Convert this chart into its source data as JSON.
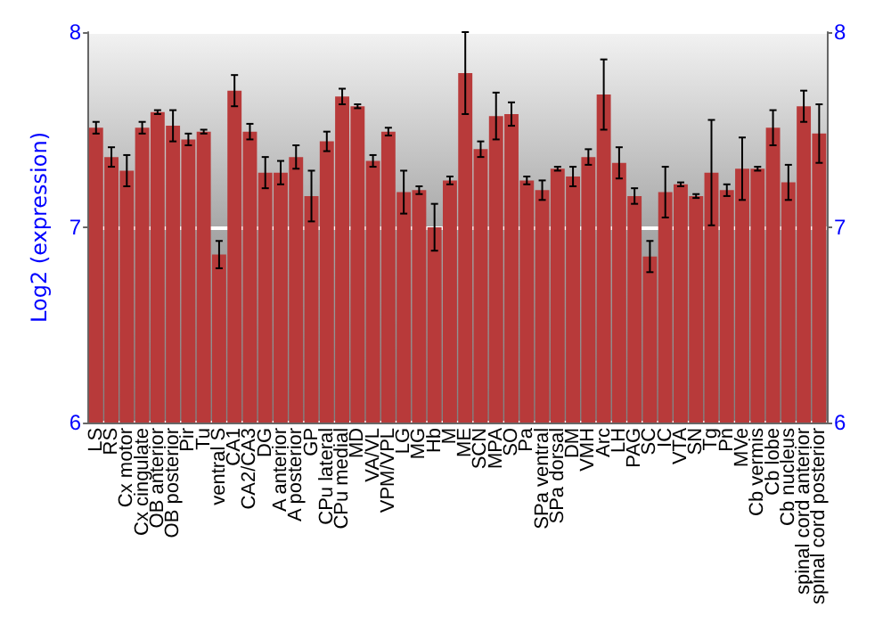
{
  "chart_data": {
    "type": "bar",
    "ylabel": "Log2 (expression)",
    "categories": [
      "LS",
      "RS",
      "Cx motor",
      "Cx cingulate",
      "OB anterior",
      "OB posterior",
      "Pir",
      "Tu",
      "ventral S",
      "CA1",
      "CA2/CA3",
      "DG",
      "A anterior",
      "A posterior",
      "GP",
      "CPu lateral",
      "CPu medial",
      "MD",
      "VA/VL",
      "VPM/VPL",
      "LG",
      "MG",
      "Hb",
      "M",
      "ME",
      "SCN",
      "MPA",
      "SO",
      "Pa",
      "SPa ventral",
      "SPa dorsal",
      "DM",
      "VMH",
      "Arc",
      "LH",
      "PAG",
      "SC",
      "IC",
      "VTA",
      "SN",
      "Tg",
      "Pn",
      "MVe",
      "Cb vermis",
      "Cb lobe",
      "Cb nucleus",
      "spinal cord anterior",
      "spinal cord posterior"
    ],
    "values": [
      7.51,
      7.36,
      7.29,
      7.51,
      7.59,
      7.52,
      7.45,
      7.49,
      6.86,
      7.7,
      7.49,
      7.28,
      7.28,
      7.36,
      7.16,
      7.44,
      7.67,
      7.62,
      7.34,
      7.49,
      7.18,
      7.19,
      7.0,
      7.24,
      7.79,
      7.4,
      7.57,
      7.58,
      7.24,
      7.19,
      7.3,
      7.26,
      7.36,
      7.68,
      7.33,
      7.16,
      6.85,
      7.18,
      7.22,
      7.16,
      7.28,
      7.19,
      7.3,
      7.3,
      7.51,
      7.23,
      7.62,
      7.48
    ],
    "errors": [
      0.03,
      0.05,
      0.08,
      0.03,
      0.01,
      0.08,
      0.03,
      0.01,
      0.07,
      0.08,
      0.04,
      0.08,
      0.06,
      0.06,
      0.13,
      0.05,
      0.04,
      0.01,
      0.03,
      0.02,
      0.11,
      0.02,
      0.12,
      0.02,
      0.21,
      0.04,
      0.12,
      0.06,
      0.02,
      0.05,
      0.01,
      0.05,
      0.04,
      0.18,
      0.08,
      0.04,
      0.08,
      0.13,
      0.01,
      0.01,
      0.27,
      0.03,
      0.16,
      0.01,
      0.09,
      0.09,
      0.08,
      0.15
    ],
    "color": "#b83a3a",
    "ylim": [
      6,
      8
    ],
    "yticks": [
      6,
      7,
      8
    ],
    "y2lim": [
      6,
      8
    ],
    "y2ticks": [
      6,
      7,
      8
    ],
    "grid": "y"
  }
}
